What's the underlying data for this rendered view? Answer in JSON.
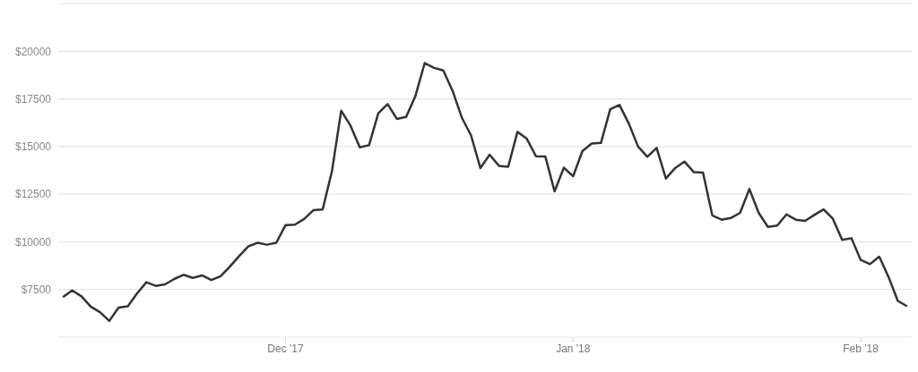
{
  "chart_data": {
    "type": "line",
    "x": [
      "2017-11-07",
      "2017-11-08",
      "2017-11-09",
      "2017-11-10",
      "2017-11-11",
      "2017-11-12",
      "2017-11-13",
      "2017-11-14",
      "2017-11-15",
      "2017-11-16",
      "2017-11-17",
      "2017-11-18",
      "2017-11-19",
      "2017-11-20",
      "2017-11-21",
      "2017-11-22",
      "2017-11-23",
      "2017-11-24",
      "2017-11-25",
      "2017-11-26",
      "2017-11-27",
      "2017-11-28",
      "2017-11-29",
      "2017-11-30",
      "2017-12-01",
      "2017-12-02",
      "2017-12-03",
      "2017-12-04",
      "2017-12-05",
      "2017-12-06",
      "2017-12-07",
      "2017-12-08",
      "2017-12-09",
      "2017-12-10",
      "2017-12-11",
      "2017-12-12",
      "2017-12-13",
      "2017-12-14",
      "2017-12-15",
      "2017-12-16",
      "2017-12-17",
      "2017-12-18",
      "2017-12-19",
      "2017-12-20",
      "2017-12-21",
      "2017-12-22",
      "2017-12-23",
      "2017-12-24",
      "2017-12-25",
      "2017-12-26",
      "2017-12-27",
      "2017-12-28",
      "2017-12-29",
      "2017-12-30",
      "2017-12-31",
      "2018-01-01",
      "2018-01-02",
      "2018-01-03",
      "2018-01-04",
      "2018-01-05",
      "2018-01-06",
      "2018-01-07",
      "2018-01-08",
      "2018-01-09",
      "2018-01-10",
      "2018-01-11",
      "2018-01-12",
      "2018-01-13",
      "2018-01-14",
      "2018-01-15",
      "2018-01-16",
      "2018-01-17",
      "2018-01-18",
      "2018-01-19",
      "2018-01-20",
      "2018-01-21",
      "2018-01-22",
      "2018-01-23",
      "2018-01-24",
      "2018-01-25",
      "2018-01-26",
      "2018-01-27",
      "2018-01-28",
      "2018-01-29",
      "2018-01-30",
      "2018-01-31",
      "2018-02-01",
      "2018-02-02",
      "2018-02-03",
      "2018-02-04",
      "2018-02-05",
      "2018-02-06"
    ],
    "series": [
      {
        "color": "#333333",
        "values": [
          7100,
          7450,
          7140,
          6600,
          6310,
          5850,
          6550,
          6620,
          7300,
          7880,
          7690,
          7770,
          8050,
          8270,
          8110,
          8240,
          8000,
          8200,
          8700,
          9250,
          9770,
          9950,
          9850,
          9950,
          10880,
          10900,
          11200,
          11660,
          11700,
          13700,
          16880,
          16100,
          14960,
          15070,
          16750,
          17230,
          16450,
          16550,
          17650,
          19380,
          19130,
          18990,
          17930,
          16520,
          15580,
          13870,
          14570,
          13990,
          13940,
          15770,
          15410,
          14490,
          14480,
          12650,
          13890,
          13440,
          14760,
          15160,
          15190,
          16960,
          17180,
          16210,
          15000,
          14460,
          14930,
          13320,
          13870,
          14210,
          13660,
          13630,
          11390,
          11160,
          11250,
          11520,
          12770,
          11520,
          10780,
          10850,
          11440,
          11160,
          11100,
          11410,
          11700,
          11210,
          10100,
          10190,
          9050,
          8830,
          9220,
          8160,
          6900,
          6620
        ]
      }
    ],
    "xlim": [
      "2017-11-06T12:00",
      "2018-02-06T12:00"
    ],
    "xticks": [
      {
        "value": "2017-12-01",
        "label": "Dec '17"
      },
      {
        "value": "2018-01-01",
        "label": "Jan '18"
      },
      {
        "value": "2018-02-01",
        "label": "Feb '18"
      }
    ],
    "ylim": [
      5000,
      22500
    ],
    "yticks": [
      {
        "value": 7500,
        "label": "$7500"
      },
      {
        "value": 10000,
        "label": "$10000"
      },
      {
        "value": 12500,
        "label": "$12500"
      },
      {
        "value": 15000,
        "label": "$15000"
      },
      {
        "value": 17500,
        "label": "$17500"
      },
      {
        "value": 20000,
        "label": "$20000"
      },
      {
        "value": 22500,
        "label": null
      }
    ],
    "grid": "y",
    "marker": "none",
    "line_style": "solid"
  }
}
